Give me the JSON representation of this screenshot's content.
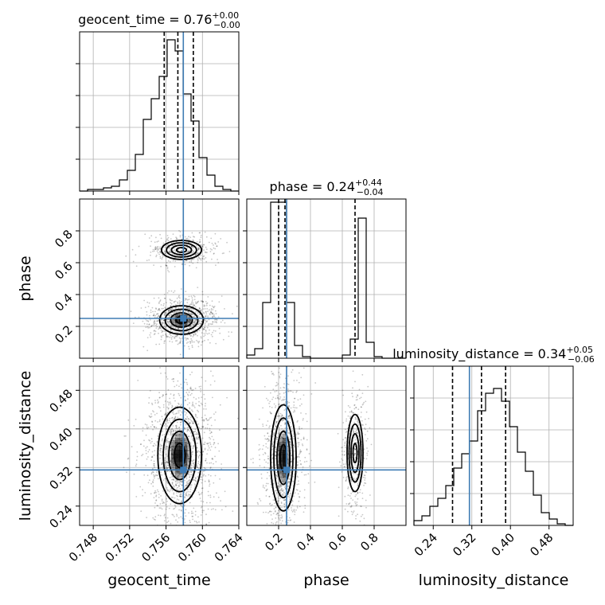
{
  "chart_data": {
    "type": "corner",
    "parameters": [
      {
        "name": "geocent_time",
        "axis_label": "geocent_time",
        "title": {
          "prefix": "geocent_time = 0.76",
          "plus": "+0.00",
          "minus": "−0.00"
        },
        "range": [
          0.7465,
          0.764
        ],
        "ticks": [
          0.748,
          0.752,
          0.756,
          0.76,
          0.764
        ],
        "tick_labels": [
          "0.748",
          "0.752",
          "0.756",
          "0.760",
          "0.764"
        ],
        "median": 0.7573,
        "quantiles": [
          0.7558,
          0.7573,
          0.759
        ],
        "truth": 0.7579,
        "hist_edges_range": [
          0.7465,
          0.764
        ],
        "hist": [
          0,
          0.01,
          0.01,
          0.02,
          0.03,
          0.07,
          0.13,
          0.23,
          0.45,
          0.58,
          0.72,
          0.95,
          0.88,
          0.61,
          0.44,
          0.21,
          0.1,
          0.03,
          0.01,
          0
        ]
      },
      {
        "name": "phase",
        "axis_label": "phase",
        "title": {
          "prefix": "phase = 0.24",
          "plus": "+0.44",
          "minus": "−0.04"
        },
        "range": [
          0.0,
          1.0
        ],
        "ticks": [
          0.2,
          0.4,
          0.6,
          0.8
        ],
        "tick_labels": [
          "0.2",
          "0.4",
          "0.6",
          "0.8"
        ],
        "median": 0.24,
        "quantiles": [
          0.2,
          0.24,
          0.68
        ],
        "truth": 0.25,
        "hist_edges_range": [
          0.0,
          1.0
        ],
        "hist": [
          0.02,
          0.06,
          0.35,
          0.98,
          0.98,
          0.35,
          0.08,
          0.01,
          0.0,
          0.0,
          0.0,
          0.0,
          0.02,
          0.12,
          0.88,
          0.1,
          0.01,
          0.0,
          0.0,
          0.0
        ]
      },
      {
        "name": "luminosity_distance",
        "axis_label": "luminosity_distance",
        "title": {
          "prefix": "luminosity_distance = 0.34",
          "plus": "+0.05",
          "minus": "−0.06"
        },
        "range": [
          0.2,
          0.53
        ],
        "ticks": [
          0.24,
          0.32,
          0.4,
          0.48
        ],
        "tick_labels": [
          "0.24",
          "0.32",
          "0.40",
          "0.48"
        ],
        "median": 0.34,
        "quantiles": [
          0.28,
          0.34,
          0.39
        ],
        "truth": 0.315,
        "hist_edges_range": [
          0.2,
          0.53
        ],
        "hist": [
          0.03,
          0.06,
          0.12,
          0.17,
          0.25,
          0.36,
          0.45,
          0.53,
          0.72,
          0.83,
          0.86,
          0.78,
          0.62,
          0.46,
          0.34,
          0.19,
          0.08,
          0.04,
          0.01,
          0
        ]
      }
    ],
    "ytick_labels_left": {
      "phase": [
        "0.2",
        "0.4",
        "0.6",
        "0.8"
      ],
      "luminosity_distance": [
        "0.24",
        "0.32",
        "0.40",
        "0.48"
      ]
    },
    "blobs": {
      "geocent_time_vs_phase": [
        {
          "cx": 0.7577,
          "cy": 0.24,
          "sx": 0.0012,
          "sy": 0.045,
          "w": 1.0
        },
        {
          "cx": 0.7577,
          "cy": 0.68,
          "sx": 0.0011,
          "sy": 0.03,
          "w": 0.45
        }
      ],
      "geocent_time_vs_luminosity_distance": [
        {
          "cx": 0.7575,
          "cy": 0.345,
          "sx": 0.0012,
          "sy": 0.05,
          "w": 1.0
        }
      ],
      "phase_vs_luminosity_distance": [
        {
          "cx": 0.23,
          "cy": 0.34,
          "sx": 0.04,
          "sy": 0.055,
          "w": 1.0
        },
        {
          "cx": 0.68,
          "cy": 0.35,
          "sx": 0.025,
          "sy": 0.04,
          "w": 0.45
        }
      ]
    },
    "colors": {
      "truth": "#3f7cb4",
      "contour": "#000000",
      "density": "#000000",
      "grid": "#b0b0b0"
    }
  }
}
